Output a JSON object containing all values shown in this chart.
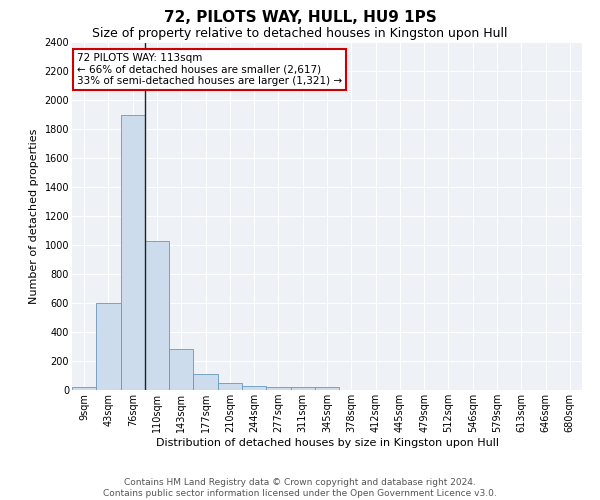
{
  "title": "72, PILOTS WAY, HULL, HU9 1PS",
  "subtitle": "Size of property relative to detached houses in Kingston upon Hull",
  "xlabel": "Distribution of detached houses by size in Kingston upon Hull",
  "ylabel": "Number of detached properties",
  "bar_color": "#ccdcec",
  "bar_edge_color": "#6699bb",
  "vline_color": "#222222",
  "categories": [
    "9sqm",
    "43sqm",
    "76sqm",
    "110sqm",
    "143sqm",
    "177sqm",
    "210sqm",
    "244sqm",
    "277sqm",
    "311sqm",
    "345sqm",
    "378sqm",
    "412sqm",
    "445sqm",
    "479sqm",
    "512sqm",
    "546sqm",
    "579sqm",
    "613sqm",
    "646sqm",
    "680sqm"
  ],
  "values": [
    20,
    600,
    1900,
    1030,
    285,
    110,
    45,
    30,
    20,
    20,
    20,
    0,
    0,
    0,
    0,
    0,
    0,
    0,
    0,
    0,
    0
  ],
  "ylim": [
    0,
    2400
  ],
  "yticks": [
    0,
    200,
    400,
    600,
    800,
    1000,
    1200,
    1400,
    1600,
    1800,
    2000,
    2200,
    2400
  ],
  "vline_x": 2.5,
  "annotation_text_line1": "72 PILOTS WAY: 113sqm",
  "annotation_text_line2": "← 66% of detached houses are smaller (2,617)",
  "annotation_text_line3": "33% of semi-detached houses are larger (1,321) →",
  "box_edge_color": "#cc0000",
  "background_color": "#eef2f7",
  "footer_text": "Contains HM Land Registry data © Crown copyright and database right 2024.\nContains public sector information licensed under the Open Government Licence v3.0.",
  "title_fontsize": 11,
  "subtitle_fontsize": 9,
  "xlabel_fontsize": 8,
  "ylabel_fontsize": 8,
  "tick_fontsize": 7,
  "annot_fontsize": 7.5,
  "footer_fontsize": 6.5
}
